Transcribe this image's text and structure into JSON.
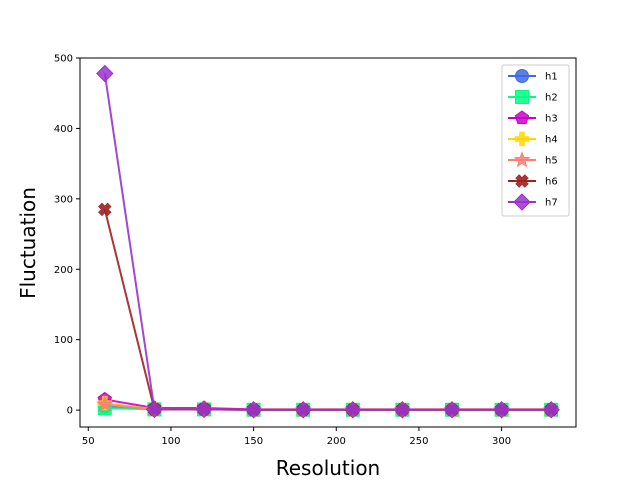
{
  "chart_data": {
    "type": "line",
    "xlabel": "Resolution",
    "ylabel": "Fluctuation",
    "xlim": [
      45,
      345
    ],
    "ylim": [
      -24,
      500
    ],
    "xticks": [
      50,
      100,
      150,
      200,
      250,
      300
    ],
    "yticks": [
      0,
      100,
      200,
      300,
      400,
      500
    ],
    "x": [
      60,
      90,
      120,
      150,
      180,
      210,
      240,
      270,
      300,
      330
    ],
    "grid": false,
    "legend_position": "top-right",
    "series": [
      {
        "name": "h1",
        "color": "#4169e1",
        "marker": "circle",
        "values": [
          5,
          1,
          1,
          0.5,
          0.5,
          0.5,
          0.5,
          0.5,
          0.5,
          0.5
        ]
      },
      {
        "name": "h2",
        "color": "#00ff7f",
        "marker": "square",
        "values": [
          3,
          1,
          1,
          0.5,
          0.5,
          0.5,
          0.5,
          0.5,
          0.5,
          0.5
        ]
      },
      {
        "name": "h3",
        "color": "#cc00cc",
        "marker": "pentagon",
        "values": [
          15,
          3,
          3,
          1,
          1,
          1,
          1,
          1,
          1,
          1
        ]
      },
      {
        "name": "h4",
        "color": "#ffd700",
        "marker": "plus",
        "values": [
          10,
          1,
          1,
          0.5,
          0.5,
          0.5,
          0.5,
          0.5,
          0.5,
          0.5
        ]
      },
      {
        "name": "h5",
        "color": "#fa8072",
        "marker": "star",
        "values": [
          8,
          1,
          1,
          0.5,
          0.5,
          0.5,
          0.5,
          0.5,
          0.5,
          0.5
        ]
      },
      {
        "name": "h6",
        "color": "#a02020",
        "marker": "x",
        "values": [
          285,
          1,
          1,
          0.5,
          0.5,
          0.5,
          0.5,
          0.5,
          0.5,
          0.5
        ]
      },
      {
        "name": "h7",
        "color": "#9932cc",
        "marker": "diamond",
        "values": [
          478,
          1,
          1,
          0.5,
          0.5,
          0.5,
          0.5,
          0.5,
          0.5,
          0.5
        ]
      }
    ]
  }
}
